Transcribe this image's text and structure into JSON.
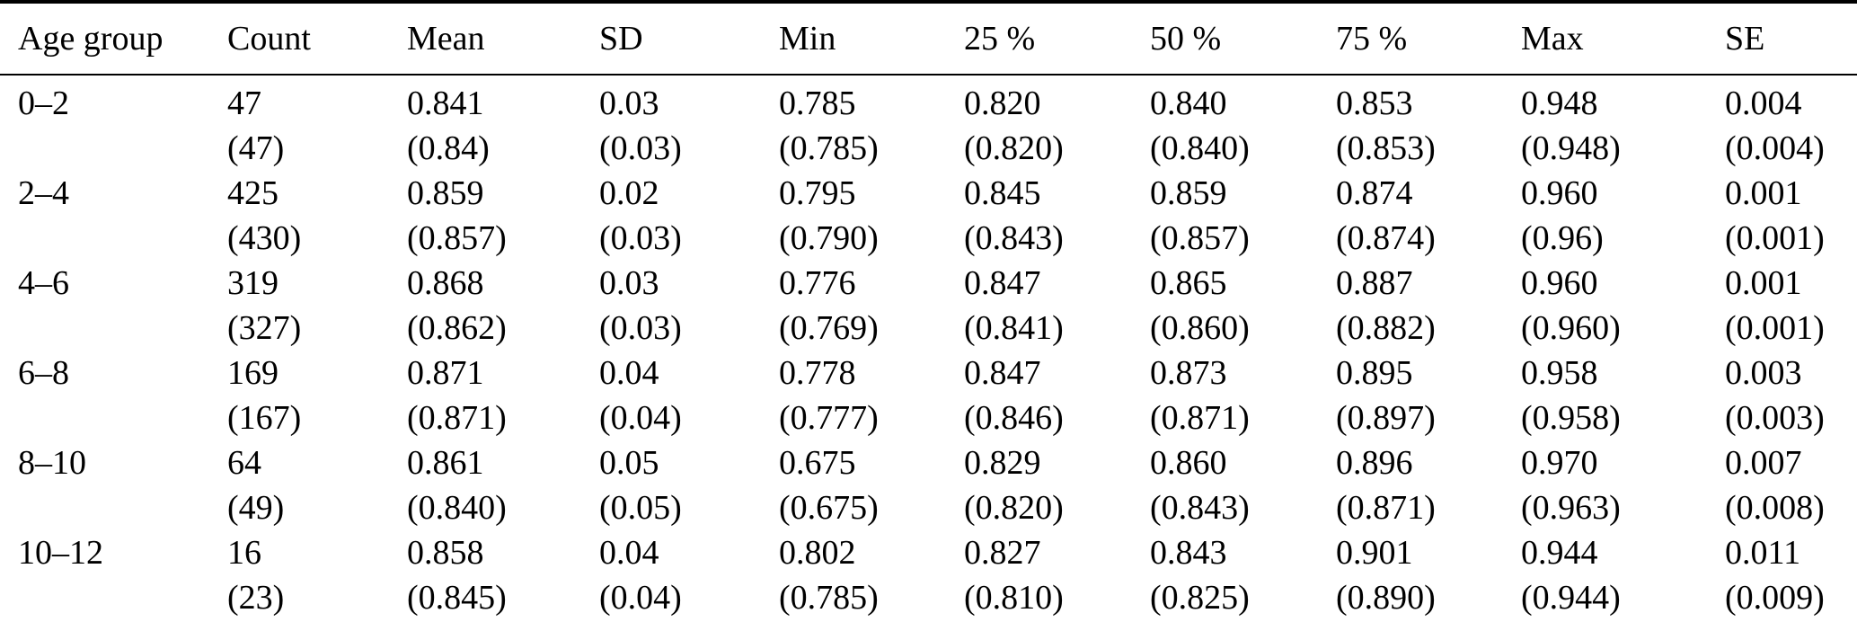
{
  "table": {
    "columns": [
      "Age group",
      "Count",
      "Mean",
      "SD",
      "Min",
      "25 %",
      "50 %",
      "75 %",
      "Max",
      "SE"
    ],
    "rows": [
      {
        "age_group": "0–2",
        "main": [
          "47",
          "0.841",
          "0.03",
          "0.785",
          "0.820",
          "0.840",
          "0.853",
          "0.948",
          "0.004"
        ],
        "paren": [
          "(47)",
          "(0.84)",
          "(0.03)",
          "(0.785)",
          "(0.820)",
          "(0.840)",
          "(0.853)",
          "(0.948)",
          "(0.004)"
        ]
      },
      {
        "age_group": "2–4",
        "main": [
          "425",
          "0.859",
          "0.02",
          "0.795",
          "0.845",
          "0.859",
          "0.874",
          "0.960",
          "0.001"
        ],
        "paren": [
          "(430)",
          "(0.857)",
          "(0.03)",
          "(0.790)",
          "(0.843)",
          "(0.857)",
          "(0.874)",
          "(0.96)",
          "(0.001)"
        ]
      },
      {
        "age_group": "4–6",
        "main": [
          "319",
          "0.868",
          "0.03",
          "0.776",
          "0.847",
          "0.865",
          "0.887",
          "0.960",
          "0.001"
        ],
        "paren": [
          "(327)",
          "(0.862)",
          "(0.03)",
          "(0.769)",
          "(0.841)",
          "(0.860)",
          "(0.882)",
          "(0.960)",
          "(0.001)"
        ]
      },
      {
        "age_group": "6–8",
        "main": [
          "169",
          "0.871",
          "0.04",
          "0.778",
          "0.847",
          "0.873",
          "0.895",
          "0.958",
          "0.003"
        ],
        "paren": [
          "(167)",
          "(0.871)",
          "(0.04)",
          "(0.777)",
          "(0.846)",
          "(0.871)",
          "(0.897)",
          "(0.958)",
          "(0.003)"
        ]
      },
      {
        "age_group": "8–10",
        "main": [
          "64",
          "0.861",
          "0.05",
          "0.675",
          "0.829",
          "0.860",
          "0.896",
          "0.970",
          "0.007"
        ],
        "paren": [
          "(49)",
          "(0.840)",
          "(0.05)",
          "(0.675)",
          "(0.820)",
          "(0.843)",
          "(0.871)",
          "(0.963)",
          "(0.008)"
        ]
      },
      {
        "age_group": "10–12",
        "main": [
          "16",
          "0.858",
          "0.04",
          "0.802",
          "0.827",
          "0.843",
          "0.901",
          "0.944",
          "0.011"
        ],
        "paren": [
          "(23)",
          "(0.845)",
          "(0.04)",
          "(0.785)",
          "(0.810)",
          "(0.825)",
          "(0.890)",
          "(0.944)",
          "(0.009)"
        ]
      }
    ]
  }
}
